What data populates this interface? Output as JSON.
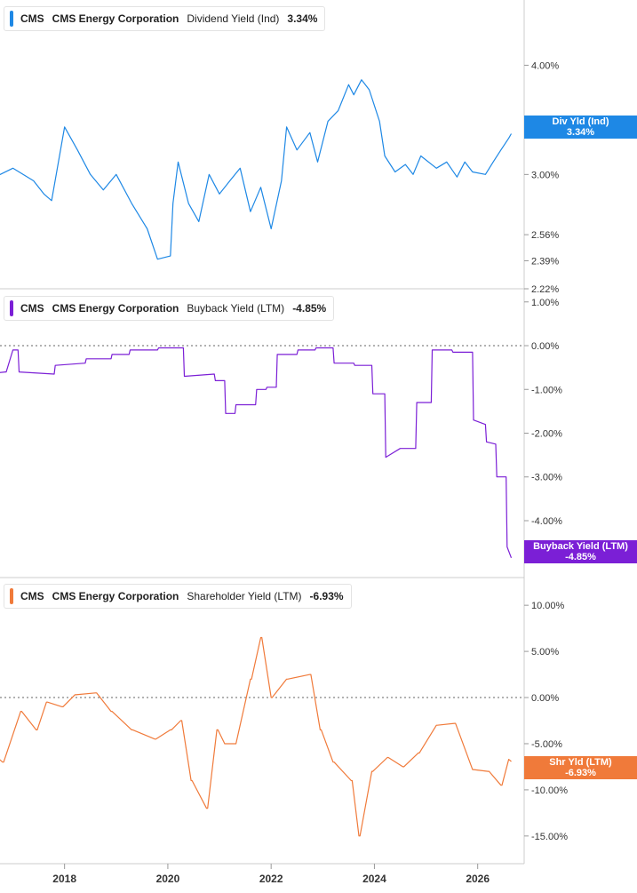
{
  "colors": {
    "dividend": "#1e88e5",
    "buyback": "#7b1fd6",
    "shareholder": "#f07a3a",
    "axis": "#cccccc",
    "zero_line": "#666666"
  },
  "chart_data": [
    {
      "type": "line",
      "ticker": "CMS",
      "company": "CMS Energy Corporation",
      "metric": "Dividend Yield (Ind)",
      "current": "3.34%",
      "tag_label": "Div Yld (Ind)",
      "y_ticks": [
        "4.00%",
        "3.00%",
        "2.56%",
        "2.39%",
        "2.22%"
      ],
      "y_tick_values": [
        4.0,
        3.0,
        2.56,
        2.39,
        2.22
      ],
      "y_scale": "log",
      "ylim": [
        2.22,
        4.75
      ],
      "x": [
        2016.5,
        2017.0,
        2017.4,
        2017.6,
        2017.75,
        2018.0,
        2018.25,
        2018.5,
        2018.75,
        2019.0,
        2019.3,
        2019.6,
        2019.8,
        2020.05,
        2020.1,
        2020.2,
        2020.4,
        2020.6,
        2020.8,
        2021.0,
        2021.2,
        2021.4,
        2021.6,
        2021.8,
        2022.0,
        2022.2,
        2022.3,
        2022.5,
        2022.75,
        2022.9,
        2023.1,
        2023.3,
        2023.5,
        2023.6,
        2023.75,
        2023.9,
        2024.1,
        2024.2,
        2024.4,
        2024.6,
        2024.75,
        2024.9,
        2025.2,
        2025.4,
        2025.6,
        2025.75,
        2025.9,
        2026.15,
        2026.3,
        2026.45,
        2026.6,
        2026.65
      ],
      "y": [
        2.95,
        3.05,
        2.95,
        2.85,
        2.8,
        3.4,
        3.2,
        3.0,
        2.88,
        3.0,
        2.78,
        2.6,
        2.4,
        2.42,
        2.78,
        3.1,
        2.78,
        2.65,
        3.0,
        2.85,
        2.95,
        3.05,
        2.72,
        2.9,
        2.6,
        2.95,
        3.4,
        3.2,
        3.35,
        3.1,
        3.45,
        3.55,
        3.8,
        3.7,
        3.85,
        3.75,
        3.45,
        3.15,
        3.02,
        3.08,
        3.0,
        3.15,
        3.05,
        3.1,
        2.98,
        3.1,
        3.02,
        3.0,
        3.1,
        3.2,
        3.3,
        3.34
      ]
    },
    {
      "type": "line",
      "ticker": "CMS",
      "company": "CMS Energy Corporation",
      "metric": "Buyback Yield (LTM)",
      "current": "-4.85%",
      "tag_label": "Buyback Yield (LTM)",
      "y_ticks": [
        "1.00%",
        "0.00%",
        "-1.00%",
        "-2.00%",
        "-3.00%",
        "-4.00%"
      ],
      "y_tick_values": [
        1,
        0,
        -1,
        -2,
        -3,
        -4
      ],
      "ylim": [
        -5.3,
        1.3
      ],
      "x": [
        2016.5,
        2016.85,
        2016.87,
        2017.0,
        2017.1,
        2017.12,
        2017.8,
        2017.82,
        2018.4,
        2018.42,
        2018.9,
        2018.92,
        2019.25,
        2019.27,
        2019.8,
        2019.82,
        2020.3,
        2020.32,
        2020.9,
        2020.92,
        2021.1,
        2021.12,
        2021.3,
        2021.32,
        2021.7,
        2021.72,
        2021.9,
        2021.92,
        2022.1,
        2022.12,
        2022.5,
        2022.52,
        2022.85,
        2022.87,
        2023.2,
        2023.22,
        2023.6,
        2023.62,
        2023.95,
        2023.97,
        2024.2,
        2024.22,
        2024.5,
        2024.8,
        2024.82,
        2025.1,
        2025.12,
        2025.3,
        2025.5,
        2025.52,
        2025.9,
        2025.92,
        2026.15,
        2026.17,
        2026.35,
        2026.37,
        2026.55,
        2026.57,
        2026.65
      ],
      "y": [
        -0.65,
        -0.6,
        -0.6,
        -0.1,
        -0.1,
        -0.6,
        -0.65,
        -0.45,
        -0.4,
        -0.3,
        -0.3,
        -0.2,
        -0.2,
        -0.1,
        -0.1,
        -0.05,
        -0.05,
        -0.7,
        -0.65,
        -0.8,
        -0.8,
        -1.55,
        -1.55,
        -1.35,
        -1.35,
        -1.0,
        -1.0,
        -0.95,
        -0.95,
        -0.2,
        -0.2,
        -0.1,
        -0.1,
        -0.05,
        -0.05,
        -0.4,
        -0.4,
        -0.45,
        -0.45,
        -1.1,
        -1.1,
        -2.55,
        -2.35,
        -2.35,
        -1.3,
        -1.3,
        -0.1,
        -0.1,
        -0.1,
        -0.15,
        -0.15,
        -1.7,
        -1.8,
        -2.2,
        -2.25,
        -3.0,
        -3.0,
        -4.6,
        -4.85
      ]
    },
    {
      "type": "line",
      "ticker": "CMS",
      "company": "CMS Energy Corporation",
      "metric": "Shareholder Yield (LTM)",
      "current": "-6.93%",
      "tag_label": "Shr Yld (LTM)",
      "y_ticks": [
        "10.00%",
        "5.00%",
        "0.00%",
        "-5.00%",
        "-10.00%",
        "-15.00%"
      ],
      "y_tick_values": [
        10,
        5,
        0,
        -5,
        -10,
        -15
      ],
      "ylim": [
        -18,
        13
      ],
      "x_ticks": [
        "2018",
        "2020",
        "2022",
        "2024",
        "2026"
      ],
      "x_tick_values": [
        2018,
        2020,
        2022,
        2024,
        2026
      ],
      "xlim": [
        2016.75,
        2026.9
      ],
      "x": [
        2016.5,
        2016.8,
        2016.82,
        2017.15,
        2017.17,
        2017.45,
        2017.47,
        2017.65,
        2017.67,
        2017.95,
        2017.97,
        2018.2,
        2018.22,
        2018.6,
        2018.62,
        2018.9,
        2018.92,
        2019.3,
        2019.32,
        2019.75,
        2019.77,
        2020.05,
        2020.07,
        2020.25,
        2020.27,
        2020.45,
        2020.47,
        2020.75,
        2020.77,
        2020.95,
        2020.97,
        2021.1,
        2021.12,
        2021.3,
        2021.32,
        2021.6,
        2021.62,
        2021.8,
        2021.82,
        2022.0,
        2022.02,
        2022.3,
        2022.32,
        2022.75,
        2022.77,
        2022.95,
        2022.97,
        2023.2,
        2023.22,
        2023.55,
        2023.57,
        2023.7,
        2023.72,
        2023.95,
        2023.97,
        2024.25,
        2024.27,
        2024.55,
        2024.57,
        2024.85,
        2024.87,
        2025.2,
        2025.22,
        2025.55,
        2025.57,
        2025.9,
        2025.92,
        2026.2,
        2026.22,
        2026.45,
        2026.47,
        2026.6,
        2026.65
      ],
      "y": [
        -5.5,
        -7.0,
        -7.0,
        -1.5,
        -1.5,
        -3.5,
        -3.5,
        -0.5,
        -0.5,
        -1.0,
        -1.0,
        0.3,
        0.3,
        0.5,
        0.5,
        -1.5,
        -1.5,
        -3.5,
        -3.5,
        -4.5,
        -4.5,
        -3.5,
        -3.5,
        -2.5,
        -2.5,
        -9.0,
        -9.0,
        -12.0,
        -12.0,
        -3.5,
        -3.5,
        -5.0,
        -5.0,
        -5.0,
        -5.0,
        2.0,
        2.0,
        6.5,
        6.5,
        0.0,
        0.0,
        2.0,
        2.0,
        2.5,
        2.5,
        -3.5,
        -3.5,
        -7.0,
        -7.0,
        -9.0,
        -9.0,
        -15.0,
        -15.0,
        -8.0,
        -8.0,
        -6.5,
        -6.5,
        -7.5,
        -7.5,
        -6.0,
        -6.0,
        -3.0,
        -3.0,
        -2.8,
        -2.8,
        -7.8,
        -7.8,
        -8.0,
        -8.0,
        -9.5,
        -9.5,
        -6.7,
        -6.93
      ]
    }
  ]
}
